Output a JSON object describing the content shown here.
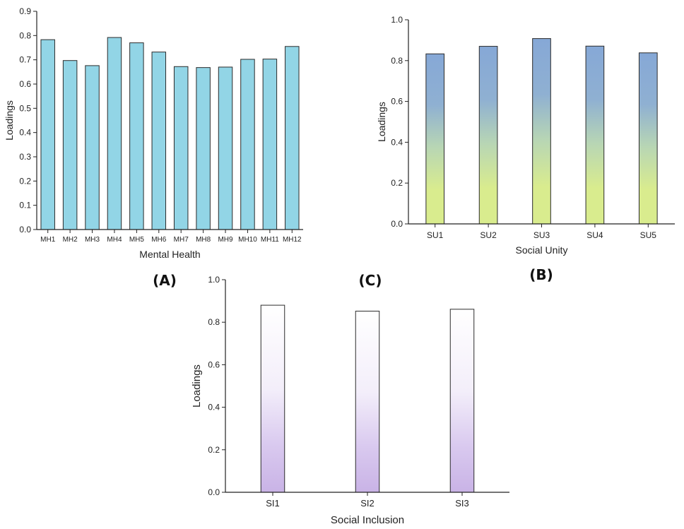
{
  "chart_data": [
    {
      "panel": "(A)",
      "type": "bar",
      "categories": [
        "MH1",
        "MH2",
        "MH3",
        "MH4",
        "MH5",
        "MH6",
        "MH7",
        "MH8",
        "MH9",
        "MH10",
        "MH11",
        "MH12"
      ],
      "values": [
        0.783,
        0.697,
        0.676,
        0.792,
        0.77,
        0.732,
        0.672,
        0.668,
        0.67,
        0.702,
        0.703,
        0.755
      ],
      "xlabel": "Mental Health",
      "ylabel": "Loadings",
      "ylim": [
        0,
        0.9
      ],
      "yticks": [
        "0.0",
        "0.1",
        "0.2",
        "0.3",
        "0.4",
        "0.5",
        "0.6",
        "0.7",
        "0.8",
        "0.9"
      ],
      "fill": "#92d5e6",
      "grid": false
    },
    {
      "panel": "(B)",
      "type": "bar",
      "categories": [
        "SU1",
        "SU2",
        "SU3",
        "SU4",
        "SU5"
      ],
      "values": [
        0.833,
        0.87,
        0.908,
        0.871,
        0.838
      ],
      "xlabel": "Social Unity",
      "ylabel": "Loadings",
      "ylim": [
        0,
        1.0
      ],
      "yticks": [
        "0.0",
        "0.2",
        "0.4",
        "0.6",
        "0.8",
        "1.0"
      ],
      "gradient": [
        "#86a8d6",
        "#d9ec8e"
      ],
      "grid": false
    },
    {
      "panel": "(C)",
      "type": "bar",
      "categories": [
        "SI1",
        "SI2",
        "SI3"
      ],
      "values": [
        0.88,
        0.852,
        0.861
      ],
      "xlabel": "Social Inclusion",
      "ylabel": "Loadings",
      "ylim": [
        0,
        1.0
      ],
      "yticks": [
        "0.0",
        "0.2",
        "0.4",
        "0.6",
        "0.8",
        "1.0"
      ],
      "gradient": [
        "#ffffff",
        "#c9b3e6"
      ],
      "grid": false
    }
  ]
}
